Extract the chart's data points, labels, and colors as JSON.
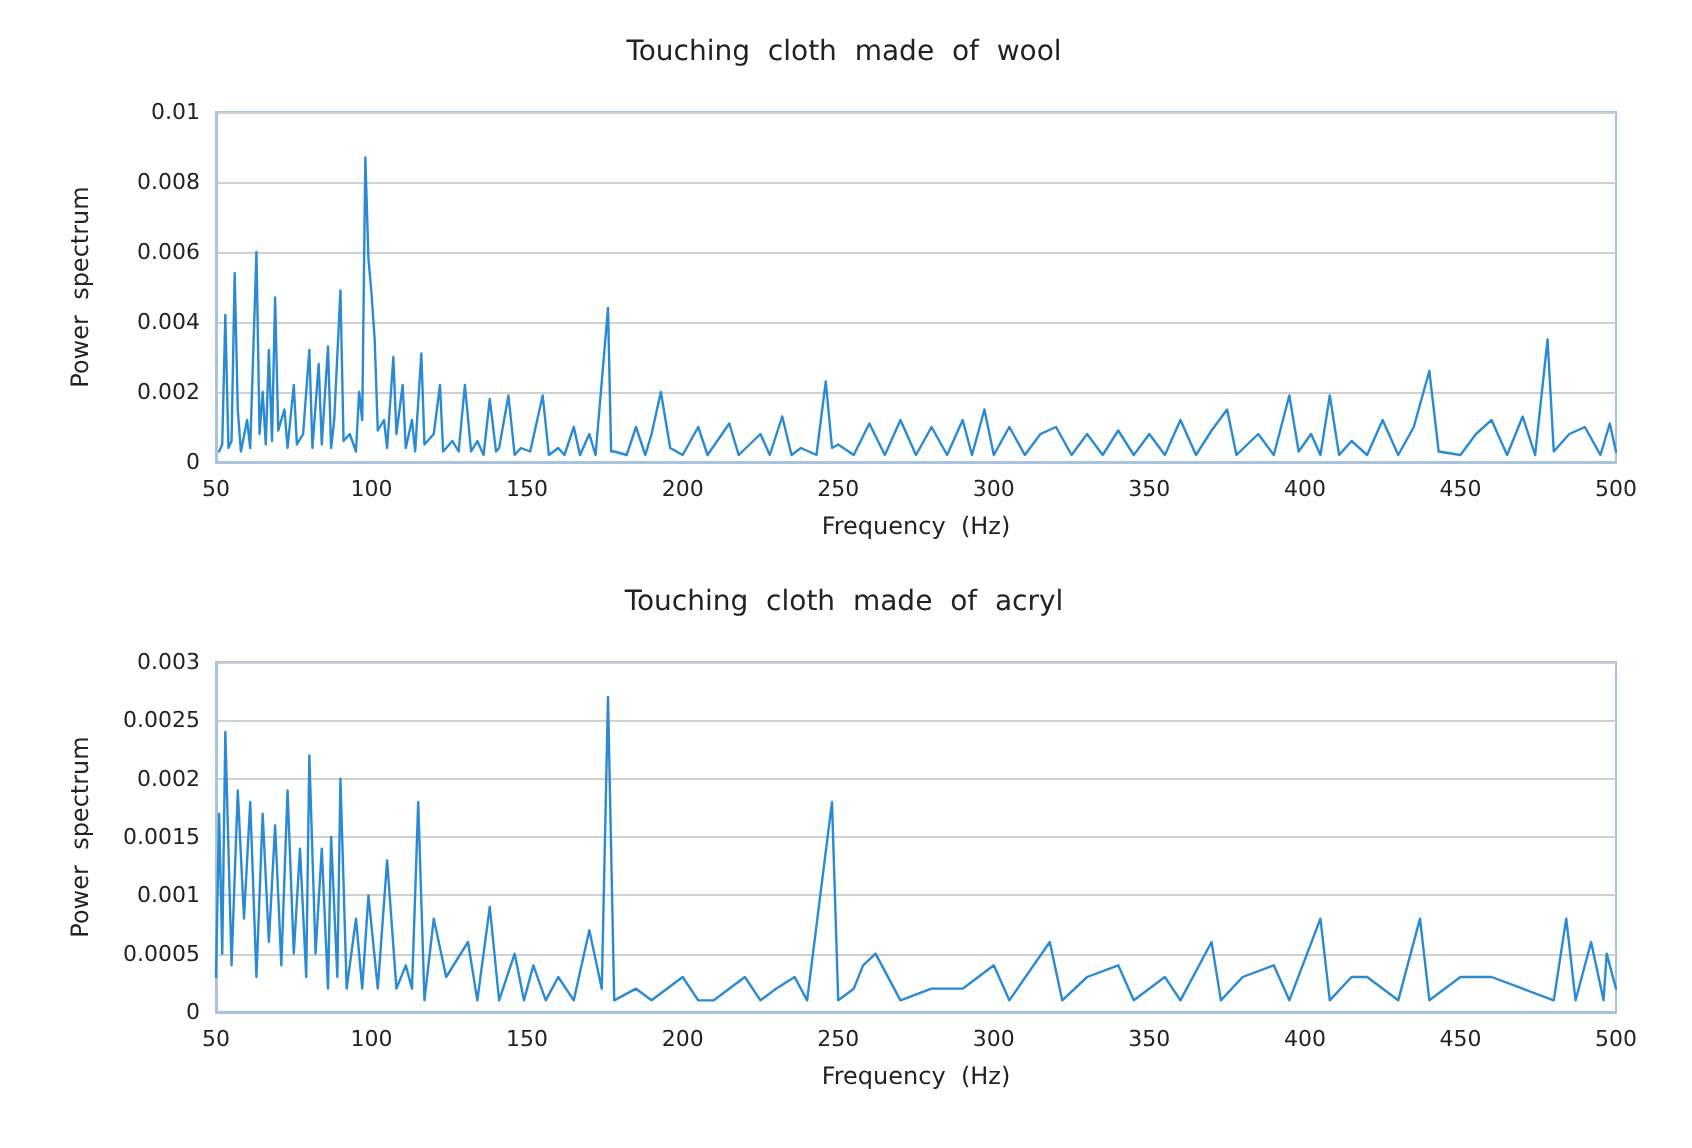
{
  "chart_data": [
    {
      "type": "line",
      "title": "Touching  cloth  made  of  wool",
      "xlabel": "Frequency  (Hz)",
      "ylabel": "Power  spectrum",
      "xlim": [
        50,
        500
      ],
      "xticks": [
        50,
        100,
        150,
        200,
        250,
        300,
        350,
        400,
        450,
        500
      ],
      "ylim": [
        0,
        0.01
      ],
      "yticks": [
        0,
        0.002,
        0.004,
        0.006,
        0.008,
        0.01
      ],
      "grid": "y",
      "marker": "none",
      "line_style": "solid",
      "series": [
        {
          "color": "#2b8ad4",
          "x": [
            51,
            52,
            53,
            54,
            55,
            56,
            57,
            58,
            60,
            61,
            63,
            64,
            65,
            66,
            67,
            68,
            69,
            70,
            72,
            73,
            75,
            76,
            78,
            80,
            81,
            83,
            84,
            86,
            87,
            88,
            90,
            91,
            93,
            95,
            96,
            97,
            98,
            99,
            100,
            101,
            102,
            104,
            105,
            107,
            108,
            110,
            111,
            113,
            114,
            116,
            117,
            120,
            122,
            123,
            126,
            128,
            130,
            132,
            134,
            136,
            138,
            140,
            141,
            144,
            146,
            148,
            151,
            155,
            157,
            160,
            162,
            165,
            167,
            170,
            172,
            176,
            177,
            178,
            182,
            185,
            188,
            190,
            193,
            196,
            200,
            205,
            208,
            215,
            218,
            225,
            228,
            232,
            235,
            238,
            243,
            246,
            248,
            250,
            255,
            260,
            265,
            270,
            275,
            280,
            285,
            290,
            293,
            297,
            300,
            305,
            310,
            315,
            320,
            325,
            330,
            335,
            340,
            345,
            350,
            355,
            360,
            365,
            370,
            375,
            378,
            385,
            390,
            395,
            398,
            402,
            405,
            408,
            411,
            415,
            420,
            425,
            430,
            435,
            440,
            443,
            450,
            455,
            460,
            465,
            470,
            474,
            478,
            480,
            485,
            490,
            495,
            498,
            500
          ],
          "values": [
            0.0003,
            0.0005,
            0.0042,
            0.0004,
            0.0006,
            0.0054,
            0.0015,
            0.0003,
            0.0012,
            0.0004,
            0.006,
            0.0008,
            0.002,
            0.0005,
            0.0032,
            0.0006,
            0.0047,
            0.0009,
            0.0015,
            0.0004,
            0.0022,
            0.0005,
            0.0008,
            0.0032,
            0.0004,
            0.0028,
            0.0005,
            0.0033,
            0.0004,
            0.0012,
            0.0049,
            0.0006,
            0.0008,
            0.0003,
            0.002,
            0.0012,
            0.0087,
            0.0058,
            0.0048,
            0.0035,
            0.0009,
            0.0012,
            0.0004,
            0.003,
            0.0008,
            0.0022,
            0.0004,
            0.0012,
            0.0003,
            0.0031,
            0.0005,
            0.0008,
            0.0022,
            0.0003,
            0.0006,
            0.0003,
            0.0022,
            0.0003,
            0.0006,
            0.0002,
            0.0018,
            0.0003,
            0.0004,
            0.0019,
            0.0002,
            0.0004,
            0.0003,
            0.0019,
            0.0002,
            0.0004,
            0.0002,
            0.001,
            0.0002,
            0.0008,
            0.0002,
            0.0044,
            0.0003,
            0.0003,
            0.0002,
            0.001,
            0.0002,
            0.0008,
            0.002,
            0.0004,
            0.0002,
            0.001,
            0.0002,
            0.0011,
            0.0002,
            0.0008,
            0.0002,
            0.0013,
            0.0002,
            0.0004,
            0.0002,
            0.0023,
            0.0004,
            0.0005,
            0.0002,
            0.0011,
            0.0002,
            0.0012,
            0.0002,
            0.001,
            0.0002,
            0.0012,
            0.0002,
            0.0015,
            0.0002,
            0.001,
            0.0002,
            0.0008,
            0.001,
            0.0002,
            0.0008,
            0.0002,
            0.0009,
            0.0002,
            0.0008,
            0.0002,
            0.0012,
            0.0002,
            0.0009,
            0.0015,
            0.0002,
            0.0008,
            0.0002,
            0.0019,
            0.0003,
            0.0008,
            0.0002,
            0.0019,
            0.0002,
            0.0006,
            0.0002,
            0.0012,
            0.0002,
            0.001,
            0.0026,
            0.0003,
            0.0002,
            0.0008,
            0.0012,
            0.0002,
            0.0013,
            0.0002,
            0.0035,
            0.0003,
            0.0008,
            0.001,
            0.0002,
            0.0011,
            0.0003
          ]
        }
      ]
    },
    {
      "type": "line",
      "title": "Touching  cloth  made  of  acryl",
      "xlabel": "Frequency  (Hz)",
      "ylabel": "Power  spectrum",
      "xlim": [
        50,
        500
      ],
      "xticks": [
        50,
        100,
        150,
        200,
        250,
        300,
        350,
        400,
        450,
        500
      ],
      "ylim": [
        0,
        0.003
      ],
      "yticks": [
        0,
        0.0005,
        0.001,
        0.0015,
        0.002,
        0.0025,
        0.003
      ],
      "grid": "y",
      "marker": "none",
      "line_style": "solid",
      "series": [
        {
          "color": "#2b8ad4",
          "x": [
            50,
            51,
            52,
            53,
            55,
            57,
            59,
            61,
            63,
            65,
            67,
            69,
            71,
            73,
            75,
            77,
            79,
            80,
            82,
            84,
            86,
            87,
            89,
            90,
            92,
            95,
            97,
            99,
            102,
            105,
            108,
            111,
            113,
            115,
            117,
            120,
            124,
            131,
            134,
            138,
            141,
            146,
            149,
            152,
            156,
            160,
            165,
            170,
            174,
            176,
            178,
            185,
            190,
            200,
            205,
            210,
            220,
            225,
            230,
            236,
            240,
            248,
            250,
            255,
            258,
            262,
            270,
            280,
            290,
            300,
            305,
            318,
            322,
            330,
            340,
            345,
            355,
            360,
            370,
            373,
            380,
            390,
            395,
            405,
            408,
            415,
            420,
            430,
            437,
            440,
            450,
            460,
            470,
            480,
            484,
            487,
            492,
            496,
            497,
            500
          ],
          "values": [
            0.0003,
            0.0017,
            0.0005,
            0.0024,
            0.0004,
            0.0019,
            0.0008,
            0.0018,
            0.0003,
            0.0017,
            0.0006,
            0.0016,
            0.0004,
            0.0019,
            0.0005,
            0.0014,
            0.0003,
            0.0022,
            0.0005,
            0.0014,
            0.0002,
            0.0015,
            0.0003,
            0.002,
            0.0002,
            0.0008,
            0.0002,
            0.001,
            0.0002,
            0.0013,
            0.0002,
            0.0004,
            0.0002,
            0.0018,
            0.0001,
            0.0008,
            0.0003,
            0.0006,
            0.0001,
            0.0009,
            0.0001,
            0.0005,
            0.0001,
            0.0004,
            0.0001,
            0.0003,
            0.0001,
            0.0007,
            0.0002,
            0.0027,
            0.0001,
            0.0002,
            0.0001,
            0.0003,
            0.0001,
            0.0001,
            0.0003,
            0.0001,
            0.0002,
            0.0003,
            0.0001,
            0.0018,
            0.0001,
            0.0002,
            0.0004,
            0.0005,
            0.0001,
            0.0002,
            0.0002,
            0.0004,
            0.0001,
            0.0006,
            0.0001,
            0.0003,
            0.0004,
            0.0001,
            0.0003,
            0.0001,
            0.0006,
            0.0001,
            0.0003,
            0.0004,
            0.0001,
            0.0008,
            0.0001,
            0.0003,
            0.0003,
            0.0001,
            0.0008,
            0.0001,
            0.0003,
            0.0003,
            0.0002,
            0.0001,
            0.0008,
            0.0001,
            0.0006,
            0.0001,
            0.0005,
            0.0002
          ]
        }
      ]
    }
  ]
}
